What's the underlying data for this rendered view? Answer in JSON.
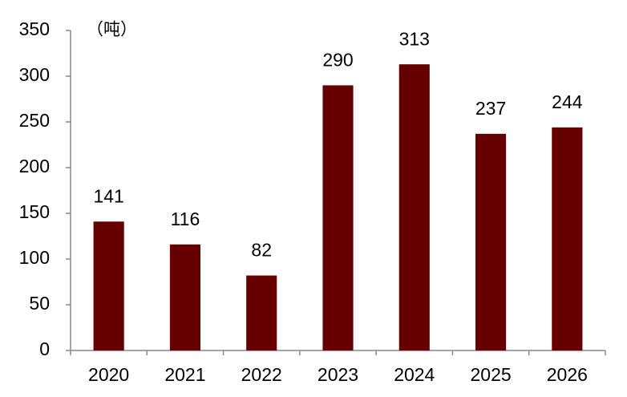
{
  "chart_data": {
    "type": "bar",
    "unit_label": "（吨）",
    "categories": [
      "2020",
      "2021",
      "2022",
      "2023",
      "2024",
      "2025",
      "2026"
    ],
    "values": [
      141,
      116,
      82,
      290,
      313,
      237,
      244
    ],
    "color": "#660000",
    "ylim": [
      0,
      350
    ],
    "yticks": [
      0,
      50,
      100,
      150,
      200,
      250,
      300,
      350
    ],
    "grid": false
  }
}
